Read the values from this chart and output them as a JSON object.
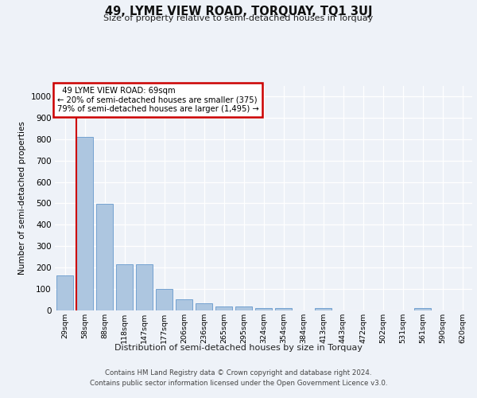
{
  "title1": "49, LYME VIEW ROAD, TORQUAY, TQ1 3UJ",
  "title2": "Size of property relative to semi-detached houses in Torquay",
  "xlabel": "Distribution of semi-detached houses by size in Torquay",
  "ylabel": "Number of semi-detached properties",
  "categories": [
    "29sqm",
    "58sqm",
    "88sqm",
    "118sqm",
    "147sqm",
    "177sqm",
    "206sqm",
    "236sqm",
    "265sqm",
    "295sqm",
    "324sqm",
    "354sqm",
    "384sqm",
    "413sqm",
    "443sqm",
    "472sqm",
    "502sqm",
    "531sqm",
    "561sqm",
    "590sqm",
    "620sqm"
  ],
  "values": [
    165,
    810,
    497,
    215,
    215,
    100,
    52,
    35,
    20,
    20,
    10,
    10,
    0,
    10,
    0,
    0,
    0,
    0,
    10,
    0,
    0
  ],
  "bar_color": "#adc6e0",
  "bar_edge_color": "#6699cc",
  "property_sqm": 69,
  "property_label": "49 LYME VIEW ROAD: 69sqm",
  "pct_smaller": 20,
  "n_smaller": 375,
  "pct_larger": 79,
  "n_larger": 1495,
  "annotation_box_color": "#ffffff",
  "annotation_box_edge": "#cc0000",
  "red_line_color": "#cc0000",
  "ylim": [
    0,
    1050
  ],
  "yticks": [
    0,
    100,
    200,
    300,
    400,
    500,
    600,
    700,
    800,
    900,
    1000
  ],
  "footnote1": "Contains HM Land Registry data © Crown copyright and database right 2024.",
  "footnote2": "Contains public sector information licensed under the Open Government Licence v3.0.",
  "background_color": "#eef2f8",
  "grid_color": "#ffffff"
}
